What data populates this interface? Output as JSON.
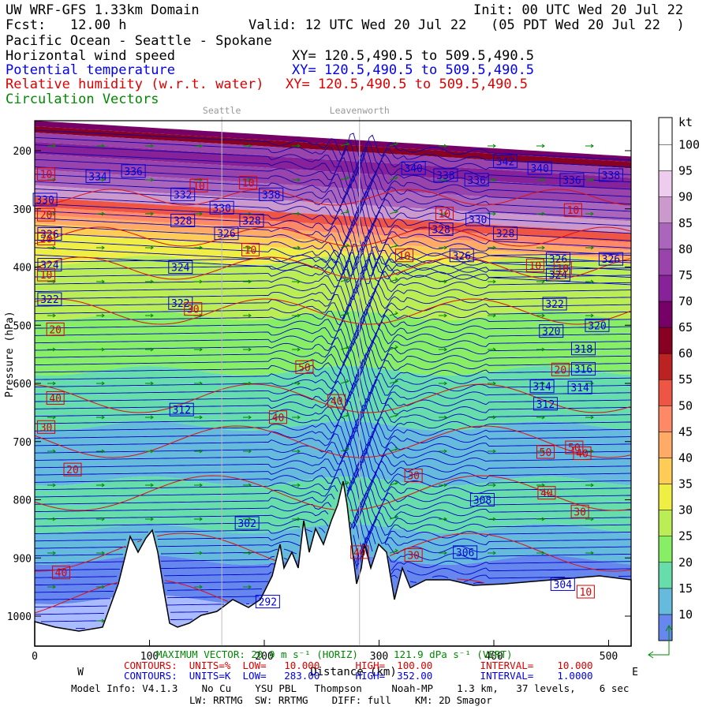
{
  "header": {
    "model": "UW WRF-GFS 1.33km Domain",
    "init": "Init: 00 UTC Wed 20 Jul 22",
    "fcst": "Fcst:   12.00 h",
    "valid": "Valid: 12 UTC Wed 20 Jul 22   (05 PDT Wed 20 Jul 22  )",
    "region": "Pacific Ocean - Seattle - Spokane",
    "fields": [
      {
        "label": "Horizontal wind speed",
        "xy": "XY= 120.5,490.5 to 509.5,490.5",
        "color": "#000000"
      },
      {
        "label": "Potential temperature",
        "xy": "XY= 120.5,490.5 to 509.5,490.5",
        "color": "#0000ee"
      },
      {
        "label": "Relative humidity (w.r.t. water)",
        "xy": "XY= 120.5,490.5 to 509.5,490.5",
        "color": "#dd0000"
      },
      {
        "label": "Circulation Vectors",
        "xy": "",
        "color": "#008800"
      }
    ]
  },
  "chart_data": {
    "type": "heatmap",
    "xlabel": "Distance (km)",
    "ylabel": "Pressure (hPa)",
    "xlim": [
      0,
      520
    ],
    "ylim": [
      1050,
      150
    ],
    "x_ticks": [
      0,
      100,
      200,
      300,
      400,
      500
    ],
    "y_ticks": [
      200,
      300,
      400,
      500,
      600,
      700,
      800,
      900,
      1000
    ],
    "x_end_labels": {
      "left": "W",
      "right": "E"
    },
    "locations": [
      {
        "name": "Seattle",
        "x": 163
      },
      {
        "name": "Leavenworth",
        "x": 283
      }
    ],
    "colorbar": {
      "unit": "kt",
      "levels": [
        10,
        15,
        20,
        25,
        30,
        35,
        40,
        45,
        50,
        55,
        60,
        65,
        70,
        75,
        80,
        85,
        90,
        95,
        100
      ],
      "colors": [
        "#6688ee",
        "#66bbdd",
        "#66ddaa",
        "#88ee66",
        "#bbee55",
        "#eeee44",
        "#ffcc55",
        "#ffaa66",
        "#ff8866",
        "#ee5544",
        "#bb2222",
        "#880022",
        "#770066",
        "#882299",
        "#9944aa",
        "#aa66bb",
        "#cc99cc",
        "#eeccee",
        "#ffffff"
      ]
    },
    "theta_labels": [
      {
        "value": 330,
        "x": 9,
        "p": 284
      },
      {
        "value": 334,
        "x": 55,
        "p": 244
      },
      {
        "value": 336,
        "x": 86,
        "p": 235
      },
      {
        "value": 332,
        "x": 129,
        "p": 275
      },
      {
        "value": 330,
        "x": 163,
        "p": 298
      },
      {
        "value": 338,
        "x": 206,
        "p": 275
      },
      {
        "value": 328,
        "x": 129,
        "p": 320
      },
      {
        "value": 326,
        "x": 167,
        "p": 342
      },
      {
        "value": 328,
        "x": 189,
        "p": 320
      },
      {
        "value": 326,
        "x": 13,
        "p": 343
      },
      {
        "value": 324,
        "x": 13,
        "p": 396
      },
      {
        "value": 324,
        "x": 127,
        "p": 400
      },
      {
        "value": 322,
        "x": 13,
        "p": 455
      },
      {
        "value": 322,
        "x": 127,
        "p": 462
      },
      {
        "value": 340,
        "x": 330,
        "p": 230
      },
      {
        "value": 338,
        "x": 358,
        "p": 242
      },
      {
        "value": 336,
        "x": 385,
        "p": 250
      },
      {
        "value": 342,
        "x": 410,
        "p": 218
      },
      {
        "value": 340,
        "x": 440,
        "p": 230
      },
      {
        "value": 336,
        "x": 468,
        "p": 250
      },
      {
        "value": 338,
        "x": 502,
        "p": 242
      },
      {
        "value": 330,
        "x": 386,
        "p": 318
      },
      {
        "value": 328,
        "x": 354,
        "p": 335
      },
      {
        "value": 328,
        "x": 410,
        "p": 342
      },
      {
        "value": 326,
        "x": 372,
        "p": 380
      },
      {
        "value": 326,
        "x": 456,
        "p": 386
      },
      {
        "value": 326,
        "x": 502,
        "p": 386
      },
      {
        "value": 324,
        "x": 456,
        "p": 413
      },
      {
        "value": 322,
        "x": 453,
        "p": 463
      },
      {
        "value": 320,
        "x": 450,
        "p": 510
      },
      {
        "value": 320,
        "x": 490,
        "p": 500
      },
      {
        "value": 318,
        "x": 478,
        "p": 540
      },
      {
        "value": 316,
        "x": 478,
        "p": 575
      },
      {
        "value": 314,
        "x": 442,
        "p": 605
      },
      {
        "value": 314,
        "x": 475,
        "p": 607
      },
      {
        "value": 312,
        "x": 128,
        "p": 645
      },
      {
        "value": 312,
        "x": 445,
        "p": 635
      },
      {
        "value": 308,
        "x": 390,
        "p": 800
      },
      {
        "value": 306,
        "x": 375,
        "p": 890
      },
      {
        "value": 304,
        "x": 460,
        "p": 945
      },
      {
        "value": 302,
        "x": 185,
        "p": 840
      },
      {
        "value": 292,
        "x": 203,
        "p": 975
      }
    ],
    "rh_labels": [
      {
        "value": 10,
        "x": 10,
        "p": 240
      },
      {
        "value": 10,
        "x": 143,
        "p": 260
      },
      {
        "value": 10,
        "x": 186,
        "p": 255
      },
      {
        "value": 10,
        "x": 357,
        "p": 308
      },
      {
        "value": 10,
        "x": 469,
        "p": 302
      },
      {
        "value": 10,
        "x": 322,
        "p": 380
      },
      {
        "value": 10,
        "x": 188,
        "p": 370
      },
      {
        "value": 10,
        "x": 436,
        "p": 397
      },
      {
        "value": 10,
        "x": 460,
        "p": 402
      },
      {
        "value": 10,
        "x": 10,
        "p": 413
      },
      {
        "value": 10,
        "x": 480,
        "p": 958
      },
      {
        "value": 20,
        "x": 10,
        "p": 310
      },
      {
        "value": 20,
        "x": 10,
        "p": 351
      },
      {
        "value": 20,
        "x": 18,
        "p": 507
      },
      {
        "value": 20,
        "x": 458,
        "p": 576
      },
      {
        "value": 20,
        "x": 33,
        "p": 748
      },
      {
        "value": 30,
        "x": 10,
        "p": 675
      },
      {
        "value": 30,
        "x": 138,
        "p": 472
      },
      {
        "value": 30,
        "x": 330,
        "p": 758
      },
      {
        "value": 30,
        "x": 475,
        "p": 820
      },
      {
        "value": 30,
        "x": 330,
        "p": 895
      },
      {
        "value": 40,
        "x": 18,
        "p": 625
      },
      {
        "value": 40,
        "x": 212,
        "p": 658
      },
      {
        "value": 40,
        "x": 263,
        "p": 630
      },
      {
        "value": 40,
        "x": 446,
        "p": 788
      },
      {
        "value": 40,
        "x": 477,
        "p": 720
      },
      {
        "value": 40,
        "x": 23,
        "p": 925
      },
      {
        "value": 40,
        "x": 283,
        "p": 890
      },
      {
        "value": 50,
        "x": 235,
        "p": 572
      },
      {
        "value": 50,
        "x": 445,
        "p": 718
      },
      {
        "value": 50,
        "x": 470,
        "p": 710
      }
    ]
  },
  "footer": {
    "max_vector": "MAXIMUM VECTOR: 20.9 m s⁻¹ (HORIZ)      121.9 dPa s⁻¹ (VERT)",
    "rh_contours": "CONTOURS:  UNITS=%  LOW=   10.000      HIGH=  100.00        INTERVAL=    10.000",
    "theta_contours": "CONTOURS:  UNITS=K  LOW=   283.00      HIGH=  352.00        INTERVAL=    1.0000",
    "model_info": "Model Info: V4.1.3    No Cu    YSU PBL   Thompson     Noah-MP    1.3 km,   37 levels,    6 sec",
    "model_info2": "LW: RRTMG  SW: RRTMG    DIFF: full    KM: 2D Smagor"
  }
}
